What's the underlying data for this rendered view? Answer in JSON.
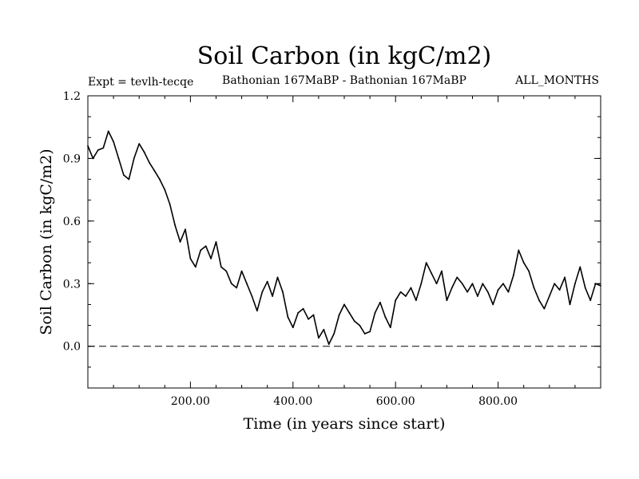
{
  "chart_data": {
    "type": "line",
    "title": "Soil Carbon (in kgC/m2)",
    "experiment": "Expt = tevlh-tecqe",
    "period": "Bathonian 167MaBP - Bathonian 167MaBP",
    "season": "ALL_MONTHS",
    "xlabel": "Time (in years since start)",
    "ylabel": "Soil Carbon (in kgC/m2)",
    "xlim": [
      0,
      1000
    ],
    "ylim": [
      -0.2,
      1.2
    ],
    "x_ticks": [
      200,
      400,
      600,
      800
    ],
    "x_tick_labels": [
      "200.00",
      "400.00",
      "600.00",
      "800.00"
    ],
    "y_ticks": [
      0.0,
      0.3,
      0.6,
      0.9,
      1.2
    ],
    "y_tick_labels": [
      "0.0",
      "0.3",
      "0.6",
      "0.9",
      "1.2"
    ],
    "reference_line": {
      "y": 0.0,
      "style": "dashed"
    },
    "series": [
      {
        "name": "Soil Carbon",
        "x": [
          0,
          10,
          20,
          30,
          40,
          50,
          60,
          70,
          80,
          90,
          100,
          110,
          120,
          130,
          140,
          150,
          160,
          170,
          180,
          190,
          200,
          210,
          220,
          230,
          240,
          250,
          260,
          270,
          280,
          290,
          300,
          310,
          320,
          330,
          340,
          350,
          360,
          370,
          380,
          390,
          400,
          410,
          420,
          430,
          440,
          450,
          460,
          470,
          480,
          490,
          500,
          510,
          520,
          530,
          540,
          550,
          560,
          570,
          580,
          590,
          600,
          610,
          620,
          630,
          640,
          650,
          660,
          670,
          680,
          690,
          700,
          710,
          720,
          730,
          740,
          750,
          760,
          770,
          780,
          790,
          800,
          810,
          820,
          830,
          840,
          850,
          860,
          870,
          880,
          890,
          900,
          910,
          920,
          930,
          940,
          950,
          960,
          970,
          980,
          990,
          1000
        ],
        "values": [
          0.96,
          0.9,
          0.94,
          0.95,
          1.03,
          0.98,
          0.9,
          0.82,
          0.8,
          0.9,
          0.97,
          0.93,
          0.88,
          0.84,
          0.8,
          0.75,
          0.68,
          0.58,
          0.5,
          0.56,
          0.42,
          0.38,
          0.46,
          0.48,
          0.42,
          0.5,
          0.38,
          0.36,
          0.3,
          0.28,
          0.36,
          0.3,
          0.24,
          0.17,
          0.26,
          0.31,
          0.24,
          0.33,
          0.26,
          0.14,
          0.09,
          0.16,
          0.18,
          0.13,
          0.15,
          0.04,
          0.08,
          0.01,
          0.06,
          0.15,
          0.2,
          0.16,
          0.12,
          0.1,
          0.06,
          0.07,
          0.16,
          0.21,
          0.14,
          0.09,
          0.22,
          0.26,
          0.24,
          0.28,
          0.22,
          0.3,
          0.4,
          0.35,
          0.3,
          0.36,
          0.22,
          0.28,
          0.33,
          0.3,
          0.26,
          0.3,
          0.24,
          0.3,
          0.26,
          0.2,
          0.27,
          0.3,
          0.26,
          0.34,
          0.46,
          0.4,
          0.36,
          0.28,
          0.22,
          0.18,
          0.24,
          0.3,
          0.27,
          0.33,
          0.2,
          0.3,
          0.38,
          0.28,
          0.22,
          0.3,
          0.29
        ]
      }
    ]
  }
}
